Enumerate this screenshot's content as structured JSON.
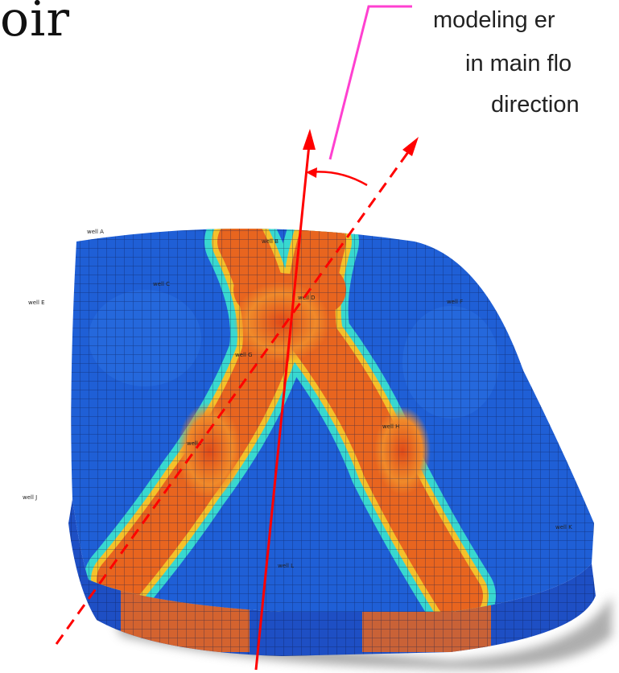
{
  "title_fragment": "oir",
  "annotation": {
    "lines": [
      "modeling er",
      "in main flo",
      "direction"
    ]
  },
  "colors": {
    "callout_line": "#ff40d0",
    "flow_arrows": "#ff0000",
    "reservoir_low": "#1f5fd6",
    "reservoir_high": "#e8541c",
    "grid_line": "#0b1a4a",
    "shadow": "#9a9a9a"
  },
  "well_labels": [
    "well A",
    "well B",
    "well C",
    "well D",
    "well E",
    "well F",
    "well G",
    "well H",
    "well I",
    "well J",
    "well K",
    "well L"
  ]
}
